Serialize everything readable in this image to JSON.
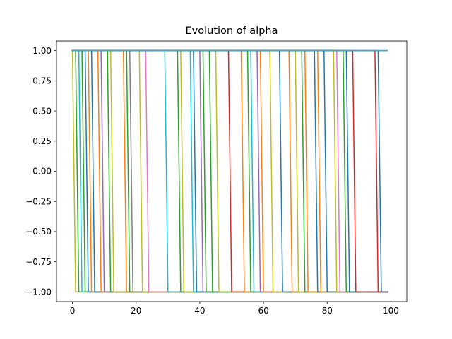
{
  "chart_data": {
    "type": "line",
    "title": "Evolution of alpha",
    "xlabel": "",
    "ylabel": "",
    "xlim": [
      -5,
      105
    ],
    "ylim": [
      -1.08,
      1.08
    ],
    "x_ticks": [
      0,
      20,
      40,
      60,
      80,
      100
    ],
    "x_tick_labels": [
      "0",
      "20",
      "40",
      "60",
      "80",
      "100"
    ],
    "y_ticks": [
      1.0,
      0.75,
      0.5,
      0.25,
      0.0,
      -0.25,
      -0.5,
      -0.75,
      -1.0
    ],
    "y_tick_labels": [
      "1.00",
      "0.75",
      "0.50",
      "0.25",
      "0.00",
      "−0.25",
      "−0.50",
      "−0.75",
      "−1.00"
    ],
    "grid": false,
    "legend": "none",
    "x_range": [
      0,
      99
    ],
    "series_description": "Each series stays at 1.0 until a switch iteration, then drops to -1.0 (over one iteration) and stays there.",
    "colors": [
      "#1f77b4",
      "#ff7f0e",
      "#2ca02c",
      "#d62728",
      "#9467bd",
      "#8c564b",
      "#e377c2",
      "#7f7f7f",
      "#bcbd22",
      "#17becf"
    ],
    "series": [
      {
        "switch_at": 0,
        "color": "#bcbd22"
      },
      {
        "switch_at": 1,
        "color": "#2ca02c"
      },
      {
        "switch_at": 2,
        "color": "#17becf"
      },
      {
        "switch_at": 3,
        "color": "#2ca02c"
      },
      {
        "switch_at": 4,
        "color": "#1f77b4"
      },
      {
        "switch_at": 5,
        "color": "#ff7f0e"
      },
      {
        "switch_at": 6,
        "color": "#1f77b4"
      },
      {
        "switch_at": 8,
        "color": "#ff7f0e"
      },
      {
        "switch_at": 9,
        "color": "#9467bd"
      },
      {
        "switch_at": 11,
        "color": "#2ca02c"
      },
      {
        "switch_at": 12,
        "color": "#bcbd22"
      },
      {
        "switch_at": 16,
        "color": "#ff7f0e"
      },
      {
        "switch_at": 17,
        "color": "#2ca02c"
      },
      {
        "switch_at": 18,
        "color": "#7f7f7f"
      },
      {
        "switch_at": 21,
        "color": "#bcbd22"
      },
      {
        "switch_at": 23,
        "color": "#e377c2"
      },
      {
        "switch_at": 29,
        "color": "#17becf"
      },
      {
        "switch_at": 33,
        "color": "#2ca02c"
      },
      {
        "switch_at": 34,
        "color": "#bcbd22"
      },
      {
        "switch_at": 37,
        "color": "#17becf"
      },
      {
        "switch_at": 38,
        "color": "#1f77b4"
      },
      {
        "switch_at": 40,
        "color": "#9467bd"
      },
      {
        "switch_at": 41,
        "color": "#2ca02c"
      },
      {
        "switch_at": 43,
        "color": "#2ca02c"
      },
      {
        "switch_at": 45,
        "color": "#bcbd22"
      },
      {
        "switch_at": 49,
        "color": "#d62728"
      },
      {
        "switch_at": 53,
        "color": "#ff7f0e"
      },
      {
        "switch_at": 55,
        "color": "#2ca02c"
      },
      {
        "switch_at": 56,
        "color": "#17becf"
      },
      {
        "switch_at": 58,
        "color": "#9467bd"
      },
      {
        "switch_at": 59,
        "color": "#ff7f0e"
      },
      {
        "switch_at": 62,
        "color": "#bcbd22"
      },
      {
        "switch_at": 65,
        "color": "#1f77b4"
      },
      {
        "switch_at": 68,
        "color": "#ff7f0e"
      },
      {
        "switch_at": 70,
        "color": "#bcbd22"
      },
      {
        "switch_at": 72,
        "color": "#2ca02c"
      },
      {
        "switch_at": 73,
        "color": "#ff7f0e"
      },
      {
        "switch_at": 76,
        "color": "#1f77b4"
      },
      {
        "switch_at": 77,
        "color": "#ff7f0e"
      },
      {
        "switch_at": 79,
        "color": "#1f77b4"
      },
      {
        "switch_at": 82,
        "color": "#bcbd22"
      },
      {
        "switch_at": 83,
        "color": "#e377c2"
      },
      {
        "switch_at": 85,
        "color": "#2ca02c"
      },
      {
        "switch_at": 86,
        "color": "#1f77b4"
      },
      {
        "switch_at": 88,
        "color": "#d62728"
      },
      {
        "switch_at": 95,
        "color": "#d62728"
      },
      {
        "switch_at": 96,
        "color": "#1f77b4"
      }
    ],
    "constant_series": [
      {
        "value": 1.0,
        "color": "#1f77b4"
      },
      {
        "value": 1.0,
        "color": "#17becf"
      }
    ]
  }
}
